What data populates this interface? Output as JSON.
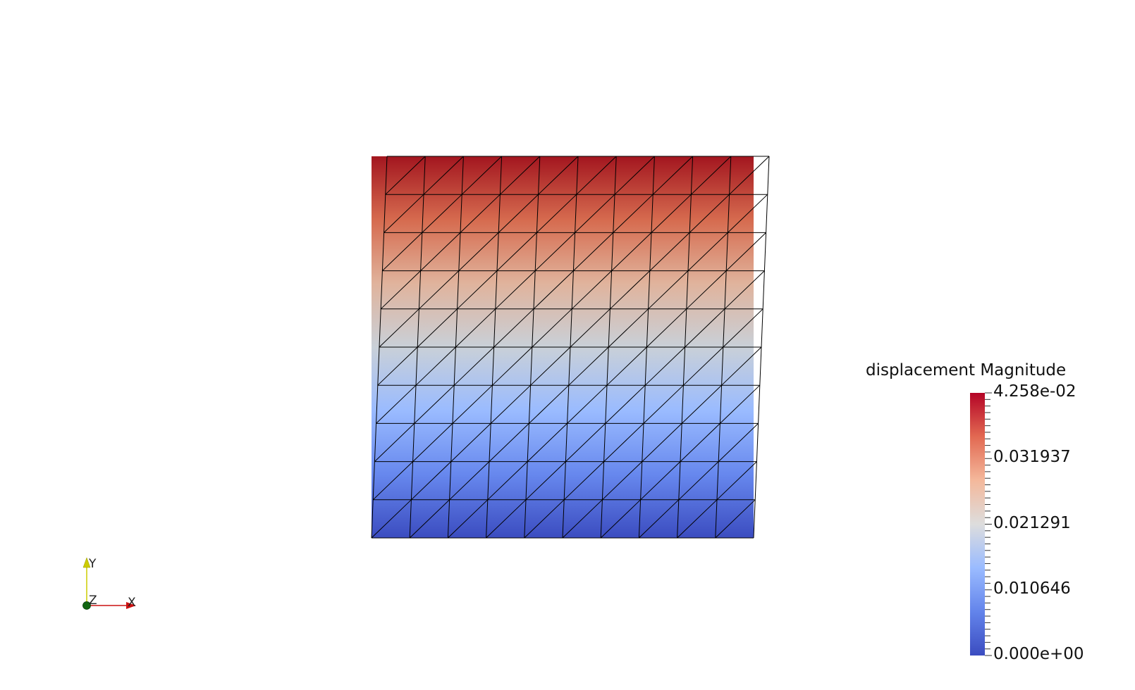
{
  "scene": {
    "mesh": {
      "columns": 10,
      "rows": 10,
      "edge_color": "#000000"
    },
    "scalar_field": {
      "name": "displacement Magnitude",
      "min": 0.0,
      "max": 0.04258
    }
  },
  "legend": {
    "title": "displacement Magnitude",
    "labels": [
      "4.258e-02",
      "0.031937",
      "0.021291",
      "0.010646",
      "0.000e+00"
    ],
    "label_values": [
      0.04258,
      0.031937,
      0.021291,
      0.010646,
      0.0
    ],
    "minor_tick_count": 40,
    "colormap": [
      "#3b4cc0",
      "#7396f5",
      "#b0cbfc",
      "#dddddd",
      "#f6bfa6",
      "#e7755b",
      "#b40426"
    ]
  },
  "orientation_axes": {
    "x_label": "X",
    "y_label": "Y",
    "z_label": "Z",
    "x_color": "#cc1111",
    "y_color": "#cccc00",
    "z_color": "#116611"
  }
}
